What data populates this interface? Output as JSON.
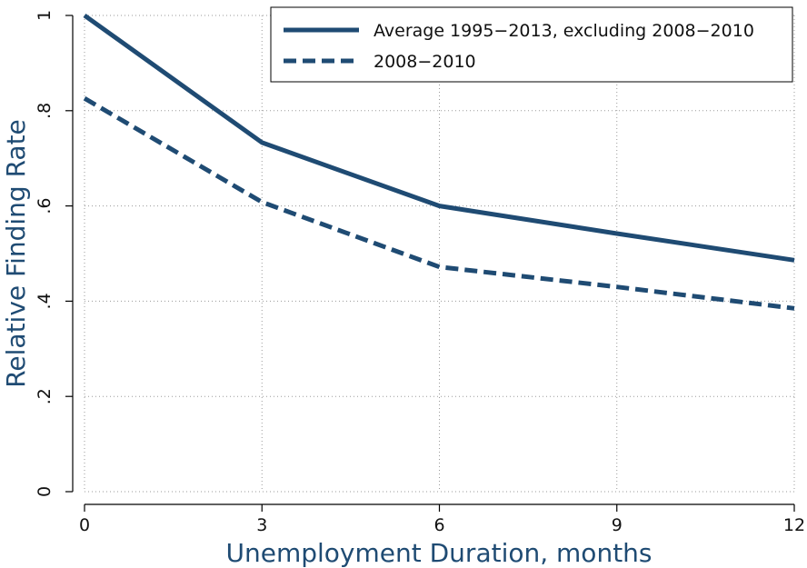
{
  "chart_data": {
    "type": "line",
    "xlabel": "Unemployment Duration, months",
    "ylabel": "Relative Finding Rate",
    "xlim": [
      0,
      12
    ],
    "ylim": [
      0,
      1
    ],
    "x_ticks": [
      0,
      3,
      6,
      9,
      12
    ],
    "x_tick_labels": [
      "0",
      "3",
      "6",
      "9",
      "12"
    ],
    "y_ticks": [
      0,
      0.2,
      0.4,
      0.6,
      0.8,
      1
    ],
    "y_tick_labels": [
      "0",
      ".2",
      ".4",
      ".6",
      ".8",
      "1"
    ],
    "grid": true,
    "legend_position": "top-right",
    "series": [
      {
        "name": "Average 1995−2013, excluding 2008−2010",
        "style": "solid",
        "color": "#1f4b73",
        "x": [
          0,
          3,
          6,
          9,
          12
        ],
        "y": [
          1.0,
          0.733,
          0.6,
          0.542,
          0.486
        ]
      },
      {
        "name": "2008−2010",
        "style": "dashed",
        "color": "#1f4b73",
        "x": [
          0,
          3,
          6,
          9,
          12
        ],
        "y": [
          0.826,
          0.608,
          0.472,
          0.43,
          0.385
        ]
      }
    ]
  }
}
